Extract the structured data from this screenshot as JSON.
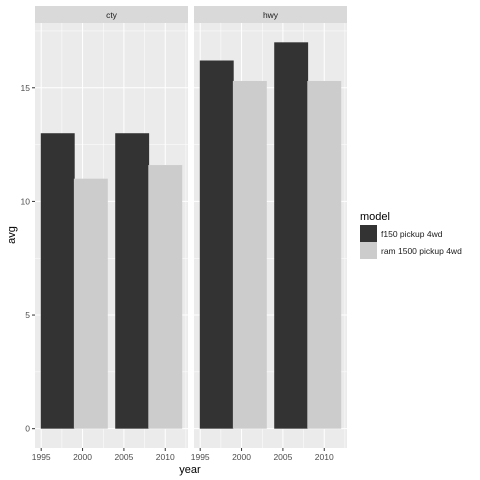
{
  "chart_data": {
    "type": "bar",
    "facets": [
      {
        "name": "cty",
        "series": [
          {
            "name": "f150 pickup 4wd",
            "x": [
              1999,
              2008
            ],
            "values": [
              13.0,
              13.0
            ]
          },
          {
            "name": "ram 1500 pickup 4wd",
            "x": [
              1999,
              2008
            ],
            "values": [
              11.0,
              11.6
            ]
          }
        ]
      },
      {
        "name": "hwy",
        "series": [
          {
            "name": "f150 pickup 4wd",
            "x": [
              1999,
              2008
            ],
            "values": [
              16.2,
              17.0
            ]
          },
          {
            "name": "ram 1500 pickup 4wd",
            "x": [
              1999,
              2008
            ],
            "values": [
              15.3,
              15.3
            ]
          }
        ]
      }
    ],
    "xlabel": "year",
    "ylabel": "avg",
    "x_ticks": [
      1995,
      2000,
      2005,
      2010
    ],
    "y_ticks": [
      0,
      5,
      10,
      15
    ],
    "xlim": [
      1994.25,
      2012.75
    ],
    "ylim": [
      -0.85,
      17.85
    ],
    "legend": {
      "title": "model",
      "entries": [
        "f150 pickup 4wd",
        "ram 1500 pickup 4wd"
      ],
      "placement": "right"
    },
    "colors": {
      "f150 pickup 4wd": "#333333",
      "ram 1500 pickup 4wd": "#cccccc",
      "panel_background": "#ebebeb",
      "strip_background": "#d9d9d9",
      "gridline": "#ffffff"
    }
  }
}
